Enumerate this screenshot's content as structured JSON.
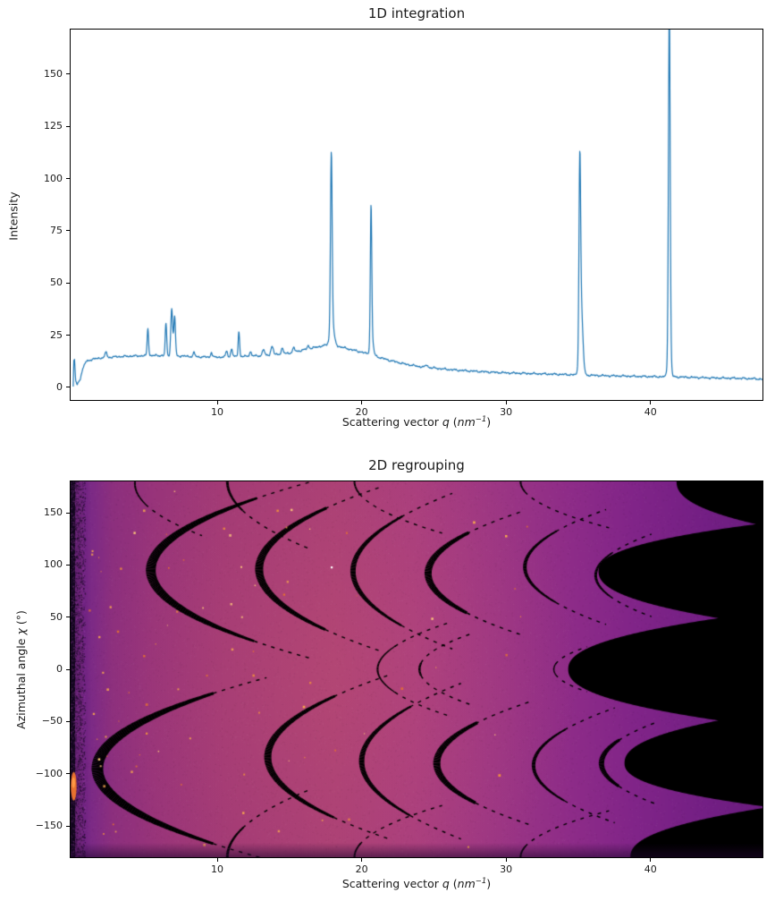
{
  "figure": {
    "background": "#ffffff",
    "top_title": "1D integration",
    "bottom_title": "2D regrouping"
  },
  "labels": {
    "xlabel_pre": "Scattering vector ",
    "xlabel_q": "q",
    "xlabel_mid": " (",
    "xlabel_unit": "nm",
    "xlabel_sup": "−1",
    "xlabel_post": ")",
    "ylabel_top": "Intensity",
    "ylabel_bottom_pre": "Azimuthal angle ",
    "ylabel_bottom_chi": "χ",
    "ylabel_bottom_post": " (°)"
  },
  "chart_data": [
    {
      "type": "line",
      "title": "1D integration",
      "xlabel": "Scattering vector q (nm^-1)",
      "ylabel": "Intensity",
      "xlim": [
        -0.15,
        47.75
      ],
      "ylim": [
        -6,
        171.4
      ],
      "xticks": [
        10,
        20,
        30,
        40
      ],
      "yticks": [
        0,
        25,
        50,
        75,
        100,
        125,
        150
      ],
      "grid": false,
      "line_color": "#1f77b4",
      "line_width": 1.2,
      "baseline_points": [
        [
          0.03,
          0
        ],
        [
          0.07,
          13
        ],
        [
          0.12,
          13.5
        ],
        [
          0.2,
          3
        ],
        [
          0.3,
          1.2
        ],
        [
          0.5,
          4
        ],
        [
          0.7,
          9
        ],
        [
          0.9,
          12.3
        ],
        [
          1.2,
          13.2
        ],
        [
          1.6,
          13.8
        ],
        [
          2.0,
          14.2
        ],
        [
          2.5,
          14.4
        ],
        [
          3.0,
          14.7
        ],
        [
          4.0,
          15.0
        ],
        [
          5.0,
          15.2
        ],
        [
          6.0,
          15.3
        ],
        [
          7.0,
          15.2
        ],
        [
          8.0,
          14.9
        ],
        [
          9.0,
          14.6
        ],
        [
          10.0,
          14.5
        ],
        [
          11.0,
          14.7
        ],
        [
          12.0,
          14.9
        ],
        [
          13.0,
          15.2
        ],
        [
          14.0,
          15.7
        ],
        [
          15.0,
          16.5
        ],
        [
          16.0,
          18.0
        ],
        [
          17.0,
          19.5
        ],
        [
          17.6,
          20.3
        ],
        [
          18.4,
          19.7
        ],
        [
          19.0,
          18.6
        ],
        [
          20.0,
          16.9
        ],
        [
          21.0,
          14.9
        ],
        [
          21.8,
          13.2
        ],
        [
          23.0,
          11.2
        ],
        [
          24.0,
          10.0
        ],
        [
          25.0,
          9.3
        ],
        [
          26.0,
          8.6
        ],
        [
          27.0,
          8.1
        ],
        [
          28.0,
          7.7
        ],
        [
          29.0,
          7.3
        ],
        [
          30.0,
          7.0
        ],
        [
          31.0,
          6.8
        ],
        [
          32.0,
          6.6
        ],
        [
          33.0,
          6.4
        ],
        [
          34.0,
          6.2
        ],
        [
          35.0,
          6.0
        ],
        [
          36.0,
          5.8
        ],
        [
          37.0,
          5.6
        ],
        [
          38.0,
          5.5
        ],
        [
          39.0,
          5.3
        ],
        [
          40.0,
          5.2
        ],
        [
          41.0,
          5.1
        ],
        [
          42.0,
          5.0
        ],
        [
          43.0,
          4.8
        ],
        [
          44.0,
          4.6
        ],
        [
          45.0,
          4.5
        ],
        [
          46.0,
          4.4
        ],
        [
          47.0,
          4.2
        ],
        [
          47.75,
          4.0
        ]
      ],
      "peaks": [
        [
          2.3,
          3,
          0.08
        ],
        [
          5.2,
          13,
          0.07
        ],
        [
          6.45,
          15.5,
          0.07
        ],
        [
          6.85,
          22.5,
          0.09
        ],
        [
          7.05,
          19,
          0.08
        ],
        [
          8.4,
          2,
          0.08
        ],
        [
          9.6,
          2.5,
          0.07
        ],
        [
          10.65,
          3,
          0.08
        ],
        [
          11.0,
          4,
          0.08
        ],
        [
          11.5,
          12,
          0.07
        ],
        [
          12.3,
          2,
          0.1
        ],
        [
          13.2,
          3,
          0.1
        ],
        [
          13.8,
          4,
          0.12
        ],
        [
          14.5,
          2.5,
          0.1
        ],
        [
          15.3,
          2,
          0.1
        ],
        [
          16.3,
          1.5,
          0.1
        ],
        [
          17.9,
          84,
          0.08
        ],
        [
          17.95,
          10,
          0.2
        ],
        [
          20.65,
          65,
          0.07
        ],
        [
          20.7,
          8,
          0.15
        ],
        [
          24.5,
          1.2,
          0.1
        ],
        [
          35.1,
          86,
          0.08
        ],
        [
          35.2,
          32,
          0.16
        ],
        [
          41.3,
          160,
          0.08
        ],
        [
          41.3,
          18,
          0.14
        ]
      ],
      "max_peak_value": 165,
      "noise_amplitude": 0.3
    },
    {
      "type": "heatmap",
      "title": "2D regrouping",
      "xlabel": "Scattering vector q (nm^-1)",
      "ylabel": "Azimuthal angle chi (deg)",
      "xlim": [
        -0.15,
        47.75
      ],
      "ylim": [
        -180,
        180
      ],
      "xticks": [
        10,
        20,
        30,
        40
      ],
      "yticks": [
        -150,
        -100,
        -50,
        0,
        50,
        100,
        150
      ],
      "colormap": "magma",
      "background_stops": [
        [
          0.0,
          "#120621"
        ],
        [
          0.007,
          "#35104d"
        ],
        [
          0.016,
          "#6b2080"
        ],
        [
          0.03,
          "#7c2a86"
        ],
        [
          0.06,
          "#8c2f7e"
        ],
        [
          0.12,
          "#98347a"
        ],
        [
          0.22,
          "#a23a76"
        ],
        [
          0.38,
          "#aa4076"
        ],
        [
          0.5,
          "#a93e7e"
        ],
        [
          0.62,
          "#9c3684"
        ],
        [
          0.72,
          "#8e2c88"
        ],
        [
          0.82,
          "#802488"
        ],
        [
          0.92,
          "#731f84"
        ],
        [
          1.0,
          "#6a1c7e"
        ]
      ],
      "bright_zone": {
        "q": 18,
        "chi": -5,
        "radius_px": 280,
        "color": "rgba(236,110,106,0.13)"
      },
      "gap_arcs": [
        [
          1.7,
          -95,
          13,
          72,
          88,
          0.025
        ],
        [
          5.4,
          95,
          11,
          68,
          85,
          0.025
        ],
        [
          12.9,
          96,
          9,
          58,
          80,
          0.022
        ],
        [
          13.5,
          -84,
          8,
          58,
          80,
          0.022
        ],
        [
          19.4,
          94,
          6,
          52,
          75,
          0.02
        ],
        [
          20.0,
          -88,
          6,
          52,
          75,
          0.02
        ],
        [
          24.6,
          92,
          8,
          38,
          60,
          0.03
        ],
        [
          25.2,
          -90,
          8,
          38,
          60,
          0.03
        ],
        [
          31.3,
          98,
          4,
          34,
          55,
          0.03
        ],
        [
          31.9,
          -92,
          4,
          34,
          55,
          0.03
        ],
        [
          36.6,
          -90,
          6,
          22,
          40,
          0.04
        ],
        [
          36.2,
          90,
          3,
          20,
          40,
          0.04
        ],
        [
          21.1,
          0,
          2,
          22,
          45,
          0.04
        ],
        [
          24.0,
          0,
          2.5,
          6,
          35,
          0.05
        ],
        [
          33.3,
          0,
          1.5,
          5,
          22,
          0.08
        ],
        [
          10.7,
          180,
          3,
          28,
          65,
          0.022
        ],
        [
          10.7,
          -180,
          3,
          28,
          65,
          0.022
        ],
        [
          4.3,
          178,
          2,
          20,
          50,
          0.03
        ],
        [
          19.5,
          180,
          2,
          12,
          50,
          0.04
        ],
        [
          19.5,
          -180,
          2,
          12,
          50,
          0.04
        ],
        [
          31.0,
          180,
          2,
          10,
          45,
          0.05
        ],
        [
          31.0,
          -180,
          2,
          10,
          45,
          0.05
        ]
      ],
      "detector_edge_boundary": [
        [
          180,
          41.8
        ],
        [
          139,
          47.3
        ],
        [
          94,
          36.4
        ],
        [
          49,
          44.7
        ],
        [
          0,
          34.3
        ],
        [
          -49,
          44.7
        ],
        [
          -90,
          38.2
        ],
        [
          -132,
          48.2
        ],
        [
          -180,
          38.6
        ]
      ],
      "edge_color": "#000000",
      "speckles": {
        "count": 85,
        "colors": [
          "#ef8e3f",
          "#f7a74f",
          "#ffca7a",
          "#e8722f"
        ],
        "bright_color": "#ffffff"
      },
      "left_strip": {
        "dark_color": "#160822",
        "mid_color": "#6d2578",
        "smear_color": "#e8722f",
        "smear_core": "#ff9a45",
        "smear_chi": -112
      }
    }
  ]
}
